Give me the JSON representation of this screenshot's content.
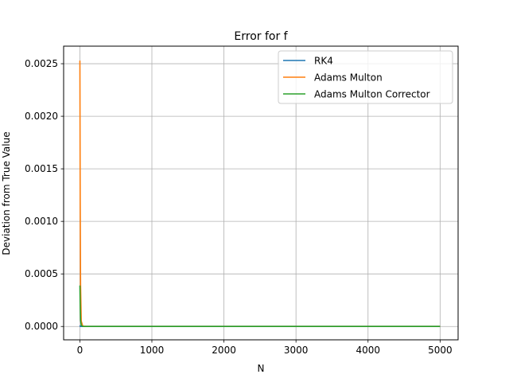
{
  "chart_data": {
    "type": "line",
    "title": "Error for f",
    "xlabel": "N",
    "ylabel": "Deviation from True Value",
    "xlim": [
      -225,
      5250
    ],
    "ylim": [
      -0.000127,
      0.002667
    ],
    "xticks": [
      0,
      1000,
      2000,
      3000,
      4000,
      5000
    ],
    "xtick_labels": [
      "0",
      "1000",
      "2000",
      "3000",
      "4000",
      "5000"
    ],
    "yticks": [
      0,
      0.0005,
      0.001,
      0.0015,
      0.002,
      0.0025
    ],
    "ytick_labels": [
      "0.0000",
      "0.0005",
      "0.0010",
      "0.0015",
      "0.0020",
      "0.0025"
    ],
    "grid": true,
    "legend_position": "top-right",
    "series": [
      {
        "name": "RK4",
        "color": "#1f77b4",
        "x": [
          1,
          5,
          10,
          20,
          40,
          60,
          100,
          200,
          500,
          1000,
          2000,
          3000,
          4000,
          5000
        ],
        "y": [
          1e-05,
          2e-06,
          5e-07,
          1e-07,
          0,
          0,
          0,
          0,
          0,
          0,
          0,
          0,
          0,
          0
        ]
      },
      {
        "name": "Adams Multon",
        "color": "#ff7f0e",
        "x": [
          1,
          5,
          10,
          20,
          40,
          60,
          100,
          200,
          500,
          1000,
          2000,
          3000,
          4000,
          5000
        ],
        "y": [
          0.00253,
          0.0012,
          0.0004,
          5e-05,
          5e-06,
          1e-06,
          0,
          0,
          0,
          0,
          0,
          0,
          0,
          0
        ]
      },
      {
        "name": "Adams Multon Corrector",
        "color": "#2ca02c",
        "x": [
          1,
          5,
          10,
          20,
          40,
          60,
          100,
          200,
          500,
          1000,
          2000,
          3000,
          4000,
          5000
        ],
        "y": [
          0.00039,
          0.00018,
          6e-05,
          1e-05,
          1e-06,
          0,
          0,
          0,
          0,
          0,
          0,
          0,
          0,
          0
        ]
      }
    ]
  }
}
